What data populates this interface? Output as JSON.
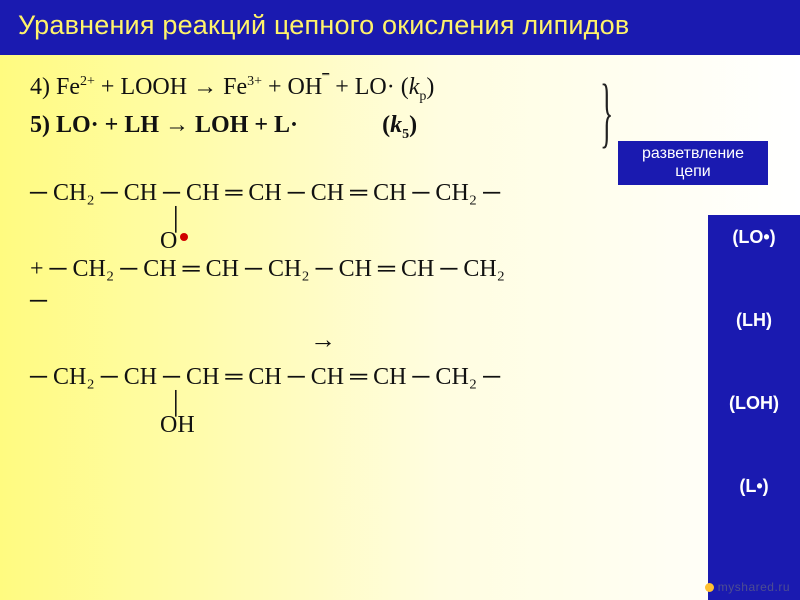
{
  "title": "Уравнения реакций цепного окисления липидов",
  "equations": {
    "eq4": {
      "prefix": "4) Fe",
      "sup1": "2+",
      "mid1": " + LOOH ",
      "arrow": "→",
      "mid2": " Fe",
      "sup2": "3+",
      "mid3": " + OH",
      "overline": "¯",
      "mid4": " + LO·   (",
      "k": "k",
      "ksub": "р",
      "close": ")"
    },
    "eq5": {
      "text1": "5) LO· + LH ",
      "arrow": "→",
      "text2": " LOH + L·",
      "kopen": "              (",
      "k": "k",
      "ksub": "5",
      "close": ")"
    }
  },
  "side_label": {
    "line1": "разветвление",
    "line2": "цепи"
  },
  "chem": {
    "row1": "─ CH₂ ─ CH ─ CH ═ CH ─ CH ═ CH ─ CH₂ ─",
    "o_vbar": "│",
    "o_label": "O",
    "row2_prefix": "+ ─ ",
    "row2": "CH₂ ─ CH ═ CH ─ CH₂ ─ CH ═ CH ─ CH₂",
    "row2_suffix": "─",
    "arrow": "→",
    "row3": "─ CH₂ ─ CH ─ CH ═ CH ─ CH ═ CH ─ CH₂ ─",
    "oh_vbar": "│",
    "oh_label": "OH"
  },
  "right_labels": {
    "lo": "(LO•)",
    "lh": "(LH)",
    "loh": "(LOH)",
    "l": "(L•)"
  },
  "watermark": "myshared.ru",
  "colors": {
    "title_bg": "#1a1ab0",
    "title_fg": "#fff36a",
    "radical_dot": "#d00000",
    "bg_grad_from": "#fffb80",
    "bg_grad_to": "#ffffff"
  }
}
